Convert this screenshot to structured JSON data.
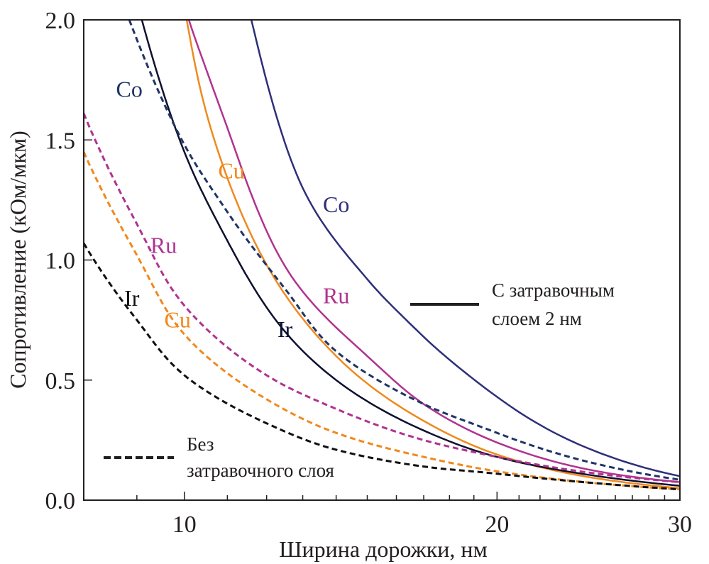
{
  "chart_data": {
    "type": "line",
    "title": "",
    "xlabel": "Ширина дорожки, нм",
    "ylabel": "Сопротивление (кОм/мкм)",
    "xscale": "log",
    "xlim": [
      8,
      30
    ],
    "ylim": [
      0,
      2.0
    ],
    "grid": false,
    "x_ticks": [
      10,
      20,
      30
    ],
    "x_tick_labels": [
      "10",
      "20",
      "30"
    ],
    "x_minor_ticks": [
      9,
      11,
      12,
      13,
      14,
      15,
      16,
      17,
      18,
      19,
      21,
      22,
      23,
      24,
      25,
      26,
      27,
      28,
      29
    ],
    "y_ticks": [
      0.0,
      0.5,
      1.0,
      1.5,
      2.0
    ],
    "y_tick_labels": [
      "0.0",
      "0.5",
      "1.0",
      "1.5",
      "2.0"
    ],
    "legend": [
      {
        "style": "solid",
        "label_lines": [
          "С затравочным",
          "слоем 2 нм"
        ],
        "placement": "right-middle"
      },
      {
        "style": "dashed",
        "label_lines": [
          "Без",
          "затравочного слоя"
        ],
        "placement": "bottom-left"
      }
    ],
    "series": [
      {
        "name": "Co",
        "style": "solid",
        "color": "#2e2f7a",
        "x": [
          11.6,
          13.0,
          15.0,
          17.0,
          20.0,
          25.0,
          30.0
        ],
        "values": [
          2.0,
          1.3,
          0.92,
          0.68,
          0.43,
          0.2,
          0.1
        ],
        "label": {
          "text": "Co",
          "x": 14.0,
          "y": 1.2
        }
      },
      {
        "name": "Ru",
        "style": "solid",
        "color": "#b0338f",
        "x": [
          10.1,
          11.0,
          12.6,
          15.0,
          17.0,
          20.0,
          25.0,
          30.0
        ],
        "values": [
          2.0,
          1.55,
          0.95,
          0.6,
          0.4,
          0.24,
          0.12,
          0.075
        ],
        "label": {
          "text": "Ru",
          "x": 14.0,
          "y": 0.82
        }
      },
      {
        "name": "Cu",
        "style": "solid",
        "color": "#f0891e",
        "x": [
          10.05,
          10.6,
          12.0,
          14.0,
          17.0,
          20.0,
          25.0,
          30.0
        ],
        "values": [
          2.0,
          1.55,
          0.98,
          0.6,
          0.33,
          0.19,
          0.09,
          0.05
        ],
        "label": {
          "text": "Cu",
          "x": 11.1,
          "y": 1.34
        }
      },
      {
        "name": "Ir",
        "style": "solid",
        "color": "#0d1030",
        "x": [
          9.1,
          10.0,
          11.0,
          12.4,
          14.0,
          17.0,
          20.0,
          25.0,
          30.0
        ],
        "values": [
          2.0,
          1.45,
          1.08,
          0.72,
          0.5,
          0.29,
          0.18,
          0.1,
          0.06
        ],
        "label": {
          "text": "Ir",
          "x": 12.5,
          "y": 0.68
        }
      },
      {
        "name": "Co",
        "style": "dashed",
        "color": "#1f3566",
        "x": [
          8.85,
          10.0,
          11.0,
          12.5,
          14.0,
          17.0,
          20.0,
          25.0,
          30.0
        ],
        "values": [
          2.0,
          1.48,
          1.2,
          0.88,
          0.62,
          0.4,
          0.28,
          0.15,
          0.085
        ],
        "label": {
          "text": "Co",
          "x": 8.85,
          "y": 1.68
        }
      },
      {
        "name": "Ru",
        "style": "dashed",
        "color": "#b0338f",
        "x": [
          8.0,
          9.0,
          10.0,
          12.0,
          14.0,
          17.0,
          20.0,
          25.0,
          30.0
        ],
        "values": [
          1.61,
          1.15,
          0.81,
          0.52,
          0.38,
          0.25,
          0.18,
          0.11,
          0.075
        ],
        "label": {
          "text": "Ru",
          "x": 9.55,
          "y": 1.03
        }
      },
      {
        "name": "Cu",
        "style": "dashed",
        "color": "#f0891e",
        "x": [
          8.0,
          9.0,
          10.0,
          12.0,
          14.0,
          17.0,
          20.0,
          25.0,
          30.0
        ],
        "values": [
          1.45,
          1.02,
          0.69,
          0.42,
          0.28,
          0.18,
          0.12,
          0.07,
          0.045
        ],
        "label": {
          "text": "Cu",
          "x": 9.85,
          "y": 0.72
        }
      },
      {
        "name": "Ir",
        "style": "dashed",
        "color": "#111111",
        "x": [
          8.0,
          9.0,
          10.0,
          12.0,
          14.0,
          17.0,
          20.0,
          25.0,
          30.0
        ],
        "values": [
          1.07,
          0.75,
          0.52,
          0.32,
          0.21,
          0.14,
          0.11,
          0.07,
          0.045
        ],
        "label": {
          "text": "Ir",
          "x": 8.9,
          "y": 0.81
        }
      }
    ]
  }
}
